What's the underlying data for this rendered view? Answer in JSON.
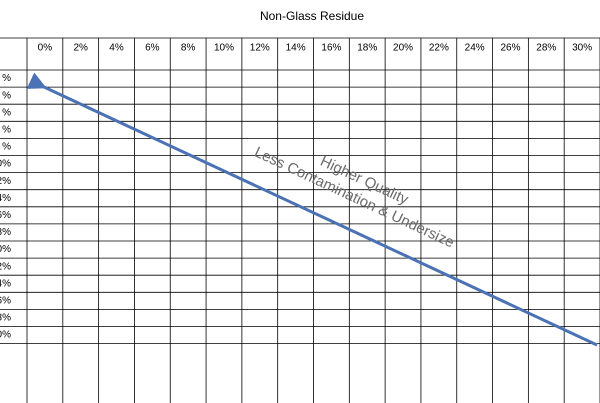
{
  "table": {
    "title": "Non-Glass Residue",
    "columns": [
      "0%",
      "2%",
      "4%",
      "6%",
      "8%",
      "10%",
      "12%",
      "14%",
      "16%",
      "18%",
      "20%",
      "22%",
      "24%",
      "26%",
      "28%",
      "30%"
    ],
    "row_labels": [
      "%",
      "%",
      "%",
      "%",
      "%",
      "0%",
      "2%",
      "4%",
      "6%",
      "8%",
      "0%",
      "2%",
      "4%",
      "6%",
      "8%",
      "0%"
    ]
  },
  "annotations": [
    "Higher Quality",
    "Less Contamination & Undersize"
  ]
}
